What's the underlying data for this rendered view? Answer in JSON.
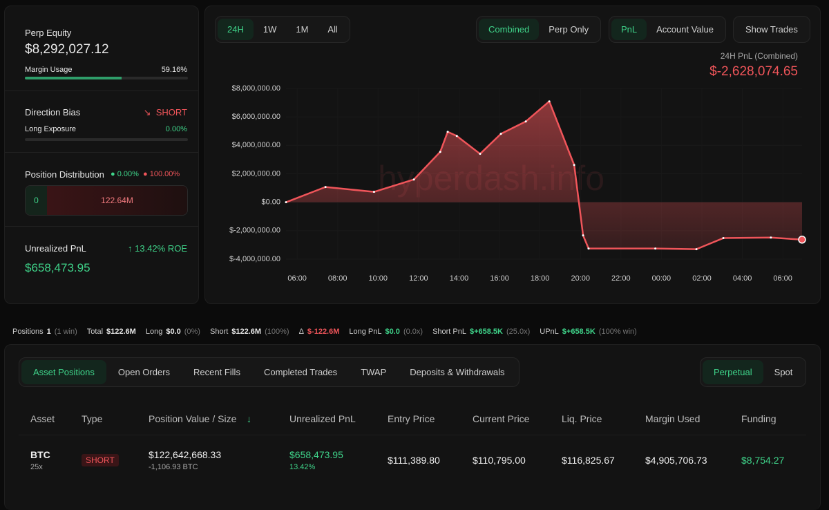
{
  "summary": {
    "perp_equity": {
      "label": "Perp Equity",
      "value": "$8,292,027.12"
    },
    "margin_usage": {
      "label": "Margin Usage",
      "value": 59.16,
      "value_label": "59.16%"
    },
    "direction_bias": {
      "label": "Direction Bias",
      "value": "SHORT",
      "icon": "↘"
    },
    "long_exposure": {
      "label": "Long Exposure",
      "value": 0,
      "value_label": "0.00%"
    },
    "position_distribution": {
      "label": "Position Distribution",
      "long_pct": "0.00%",
      "short_pct": "100.00%",
      "long_amount": "0",
      "short_amount": "122.64M"
    },
    "unrealized_pnl": {
      "label": "Unrealized PnL",
      "roe": "↑ 13.42% ROE",
      "value": "$658,473.95"
    }
  },
  "controls": {
    "ranges": [
      "24H",
      "1W",
      "1M",
      "All"
    ],
    "modes": [
      "Combined",
      "Perp Only"
    ],
    "metrics": [
      "PnL",
      "Account Value"
    ],
    "show_trades": "Show Trades"
  },
  "pnl_header": {
    "label": "24H PnL (Combined)",
    "value": "$-2,628,074.65"
  },
  "watermark": "hyperdash.info",
  "chart_data": {
    "type": "area",
    "color": "#f0555a",
    "x": [
      5.45,
      7.4,
      9.8,
      11.77,
      13.07,
      13.44,
      13.89,
      15.04,
      16.07,
      17.3,
      18.46,
      19.69,
      20.13,
      20.4,
      23.7,
      25.73,
      27.06,
      29.41,
      30.95
    ],
    "values": [
      0,
      1070000,
      730000,
      1600000,
      3540000,
      4950000,
      4660000,
      3400000,
      4810000,
      5680000,
      7090000,
      2620000,
      -2330000,
      -3250000,
      -3250000,
      -3300000,
      -2520000,
      -2480000,
      -2630000
    ],
    "xlim": [
      5.45,
      30.95
    ],
    "ylim": [
      -4000000,
      8000000
    ],
    "xticks": [
      {
        "value": 6,
        "label": "06:00"
      },
      {
        "value": 8,
        "label": "08:00"
      },
      {
        "value": 10,
        "label": "10:00"
      },
      {
        "value": 12,
        "label": "12:00"
      },
      {
        "value": 14,
        "label": "14:00"
      },
      {
        "value": 16,
        "label": "16:00"
      },
      {
        "value": 18,
        "label": "18:00"
      },
      {
        "value": 20,
        "label": "20:00"
      },
      {
        "value": 22,
        "label": "22:00"
      },
      {
        "value": 24,
        "label": "00:00"
      },
      {
        "value": 26,
        "label": "02:00"
      },
      {
        "value": 28,
        "label": "04:00"
      },
      {
        "value": 30,
        "label": "06:00"
      }
    ],
    "yticks": [
      {
        "value": 8000000,
        "label": "$8,000,000.00"
      },
      {
        "value": 6000000,
        "label": "$6,000,000.00"
      },
      {
        "value": 4000000,
        "label": "$4,000,000.00"
      },
      {
        "value": 2000000,
        "label": "$2,000,000.00"
      },
      {
        "value": 0,
        "label": "$0.00"
      },
      {
        "value": -2000000,
        "label": "$-2,000,000.00"
      },
      {
        "value": -4000000,
        "label": "$-4,000,000.00"
      }
    ]
  },
  "stats": [
    {
      "label": "Positions",
      "value": "1",
      "note": "(1 win)"
    },
    {
      "label": "Total",
      "value": "$122.6M"
    },
    {
      "label": "Long",
      "value": "$0.0",
      "note": "(0%)"
    },
    {
      "label": "Short",
      "value": "$122.6M",
      "note": "(100%)"
    },
    {
      "label": "Δ",
      "value": "$-122.6M"
    },
    {
      "label": "Long PnL",
      "value": "$0.0",
      "note": "(0.0x)"
    },
    {
      "label": "Short PnL",
      "value": "$+658.5K",
      "note": "(25.0x)"
    },
    {
      "label": "UPnL",
      "value": "$+658.5K",
      "note": "(100% win)"
    }
  ],
  "tabs": [
    "Asset Positions",
    "Open Orders",
    "Recent Fills",
    "Completed Trades",
    "TWAP",
    "Deposits & Withdrawals"
  ],
  "market_tabs": [
    "Perpetual",
    "Spot"
  ],
  "table": {
    "headers": [
      "Asset",
      "Type",
      "Position Value / Size",
      "Unrealized PnL",
      "Entry Price",
      "Current Price",
      "Liq. Price",
      "Margin Used",
      "Funding"
    ],
    "sort_icon": "↓",
    "rows": [
      {
        "asset": "BTC",
        "leverage": "25x",
        "type": "SHORT",
        "position_value": "$122,642,668.33",
        "size": "-1,106.93 BTC",
        "pnl": "$658,473.95",
        "pnl_pct": "13.42%",
        "entry": "$111,389.80",
        "current": "$110,795.00",
        "liq": "$116,825.67",
        "margin": "$4,905,706.73",
        "funding": "$8,754.27"
      }
    ]
  }
}
